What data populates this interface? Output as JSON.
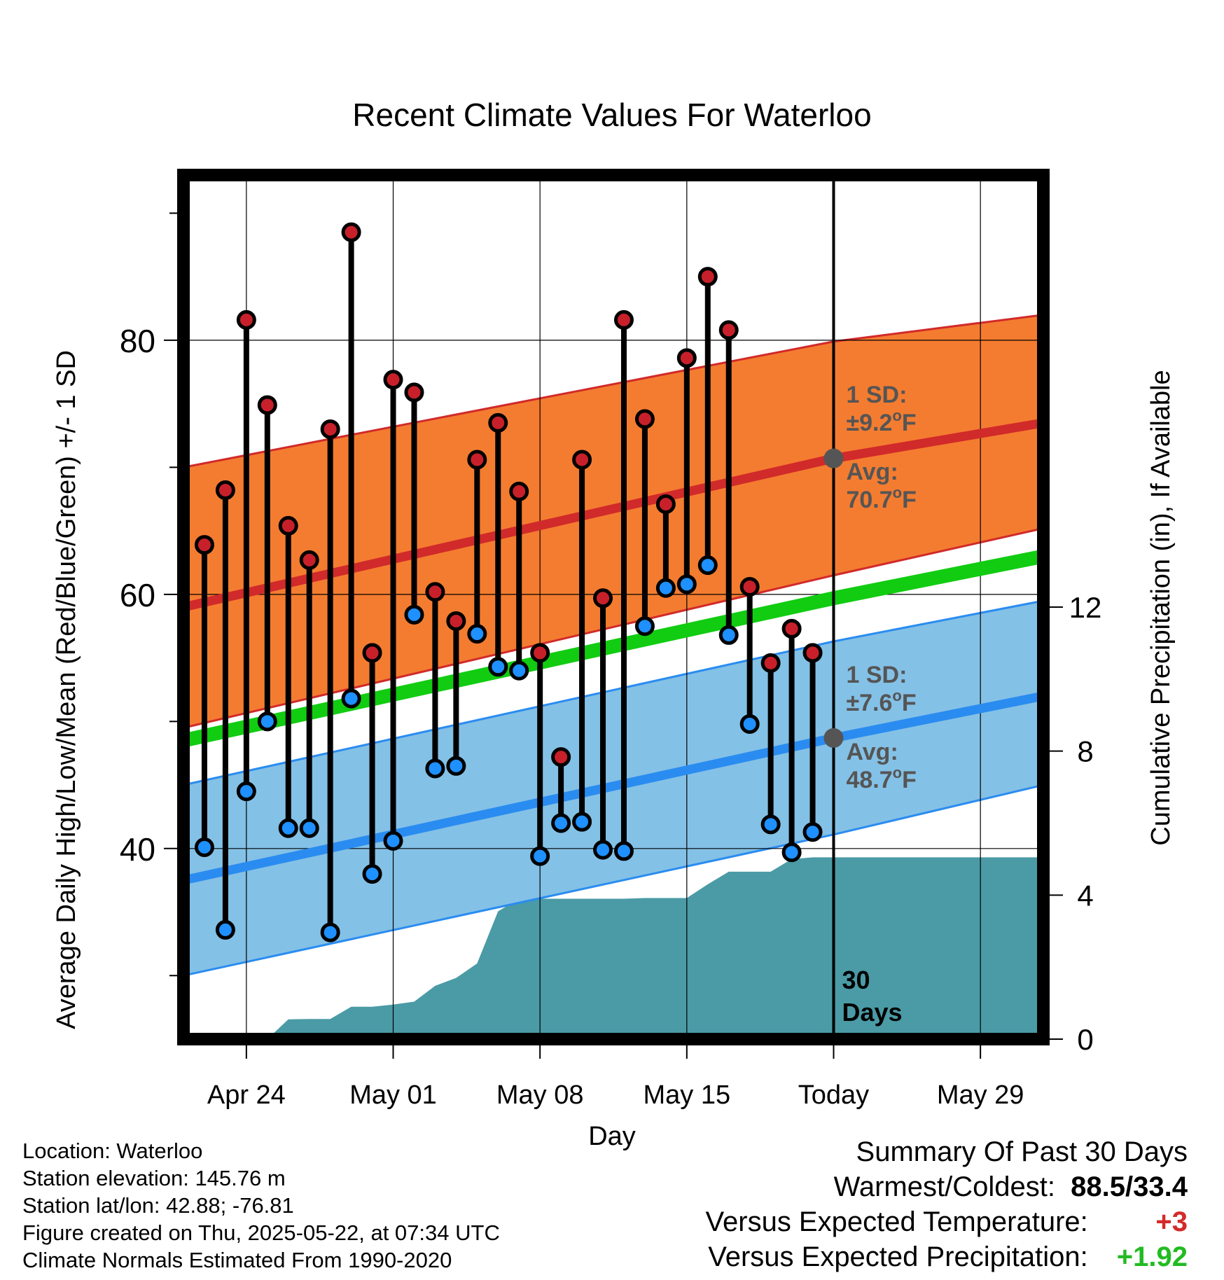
{
  "chart_data": {
    "type": "line",
    "title": "Recent Climate Values For Waterloo",
    "xlabel": "Day",
    "ylabel": "Average Daily High/Low/Mean (Red/Blue/Green) +/- 1 SD",
    "y2label": "Cumulative Precipitation (in), If Available",
    "ylim": [
      25,
      93
    ],
    "y2lim": [
      0,
      24
    ],
    "xlim": [
      "2025-04-21",
      "2025-06-01"
    ],
    "x_ticks": [
      {
        "date": "2025-04-24",
        "label": "Apr 24"
      },
      {
        "date": "2025-05-01",
        "label": "May 01"
      },
      {
        "date": "2025-05-08",
        "label": "May 08"
      },
      {
        "date": "2025-05-15",
        "label": "May 15"
      },
      {
        "date": "2025-05-22",
        "label": "Today"
      },
      {
        "date": "2025-05-29",
        "label": "May 29"
      }
    ],
    "y_ticks": [
      40,
      60,
      80
    ],
    "y_minor_ticks": [
      30,
      50,
      70,
      90
    ],
    "y2_ticks": [
      0,
      4,
      8,
      12
    ],
    "grid": true,
    "today": "2025-05-22",
    "today_label": "30\nDays",
    "normals": {
      "dates": [
        "2025-04-21",
        "2025-05-22",
        "2025-06-01"
      ],
      "high_mean": [
        59.0,
        70.7,
        73.5
      ],
      "high_upper": [
        70.0,
        79.9,
        82.0
      ],
      "high_lower": [
        49.5,
        61.5,
        65.2
      ],
      "low_mean": [
        37.5,
        48.7,
        52.0
      ],
      "low_upper": [
        45.0,
        56.3,
        59.5
      ],
      "low_lower": [
        30.0,
        41.1,
        45.0
      ],
      "mean_mean": [
        48.5,
        59.7,
        63.0
      ],
      "high_sd_label": "1 SD:\n±9.2°F",
      "high_avg_label": "Avg:\n70.7°F",
      "low_sd_label": "1 SD:\n±7.6°F",
      "low_avg_label": "Avg:\n48.7°F"
    },
    "series": [
      {
        "name": "High",
        "color": "#c8202a",
        "dates": [
          "2025-04-22",
          "2025-04-23",
          "2025-04-24",
          "2025-04-25",
          "2025-04-26",
          "2025-04-27",
          "2025-04-28",
          "2025-04-29",
          "2025-04-30",
          "2025-05-01",
          "2025-05-02",
          "2025-05-03",
          "2025-05-04",
          "2025-05-05",
          "2025-05-06",
          "2025-05-07",
          "2025-05-08",
          "2025-05-09",
          "2025-05-10",
          "2025-05-11",
          "2025-05-12",
          "2025-05-13",
          "2025-05-14",
          "2025-05-15",
          "2025-05-16",
          "2025-05-17",
          "2025-05-18",
          "2025-05-19",
          "2025-05-20",
          "2025-05-21"
        ],
        "values": [
          63.9,
          68.2,
          81.6,
          74.9,
          65.4,
          62.7,
          73.0,
          88.5,
          55.4,
          76.9,
          75.9,
          60.2,
          57.9,
          70.6,
          73.5,
          68.1,
          55.4,
          47.2,
          70.6,
          59.7,
          81.6,
          73.8,
          67.1,
          78.6,
          85.0,
          80.8,
          60.6,
          54.6,
          57.3,
          55.4
        ]
      },
      {
        "name": "Low",
        "color": "#1e90ff",
        "dates": [
          "2025-04-22",
          "2025-04-23",
          "2025-04-24",
          "2025-04-25",
          "2025-04-26",
          "2025-04-27",
          "2025-04-28",
          "2025-04-29",
          "2025-04-30",
          "2025-05-01",
          "2025-05-02",
          "2025-05-03",
          "2025-05-04",
          "2025-05-05",
          "2025-05-06",
          "2025-05-07",
          "2025-05-08",
          "2025-05-09",
          "2025-05-10",
          "2025-05-11",
          "2025-05-12",
          "2025-05-13",
          "2025-05-14",
          "2025-05-15",
          "2025-05-16",
          "2025-05-17",
          "2025-05-18",
          "2025-05-19",
          "2025-05-20",
          "2025-05-21"
        ],
        "values": [
          40.1,
          33.6,
          44.5,
          50.0,
          41.6,
          41.6,
          33.4,
          51.8,
          38.0,
          40.6,
          58.4,
          46.3,
          46.5,
          56.9,
          54.3,
          54.0,
          39.4,
          42.0,
          42.1,
          39.9,
          39.8,
          57.5,
          60.5,
          60.8,
          62.3,
          56.8,
          49.8,
          41.9,
          39.7,
          41.3
        ]
      }
    ],
    "precip": {
      "name": "Cumulative Precipitation",
      "color": "#4a9ba6",
      "dates": [
        "2025-04-22",
        "2025-04-23",
        "2025-04-24",
        "2025-04-25",
        "2025-04-26",
        "2025-04-27",
        "2025-04-28",
        "2025-04-29",
        "2025-04-30",
        "2025-05-01",
        "2025-05-02",
        "2025-05-03",
        "2025-05-04",
        "2025-05-05",
        "2025-05-06",
        "2025-05-07",
        "2025-05-08",
        "2025-05-09",
        "2025-05-10",
        "2025-05-11",
        "2025-05-12",
        "2025-05-13",
        "2025-05-14",
        "2025-05-15",
        "2025-05-16",
        "2025-05-17",
        "2025-05-18",
        "2025-05-19",
        "2025-05-20",
        "2025-05-21",
        "2025-05-22",
        "2025-06-01"
      ],
      "values": [
        0.0,
        0.0,
        0.0,
        0.0,
        0.55,
        0.56,
        0.56,
        0.9,
        0.9,
        0.96,
        1.04,
        1.48,
        1.7,
        2.1,
        3.55,
        3.9,
        3.9,
        3.9,
        3.9,
        3.9,
        3.9,
        3.92,
        3.92,
        3.92,
        4.3,
        4.65,
        4.65,
        4.65,
        5.0,
        5.05,
        5.05,
        5.05
      ]
    }
  },
  "info": {
    "location": "Location: Waterloo",
    "elevation": "Station elevation: 145.76 m",
    "latlon": "Station lat/lon: 42.88; -76.81",
    "created": "Figure created on Thu, 2025-05-22, at 07:34 UTC",
    "normals": "Climate Normals Estimated From 1990-2020"
  },
  "summary": {
    "title": "Summary Of Past 30 Days",
    "warmest_label": "Warmest/Coldest:",
    "warmest_value": "88.5/33.4",
    "temp_label": "Versus Expected Temperature:",
    "temp_value": "+3",
    "temp_color": "#d42a2a",
    "precip_label": "Versus Expected Precipitation:",
    "precip_value": "+1.92",
    "precip_color": "#22bb22"
  },
  "colors": {
    "high_band": "#f47c30",
    "high_line": "#d12a2a",
    "low_band": "#84c1e6",
    "low_line": "#2a8cf0",
    "mean_line": "#11cc11",
    "precip_fill": "#4a9ba6",
    "annotation": "#555555"
  }
}
